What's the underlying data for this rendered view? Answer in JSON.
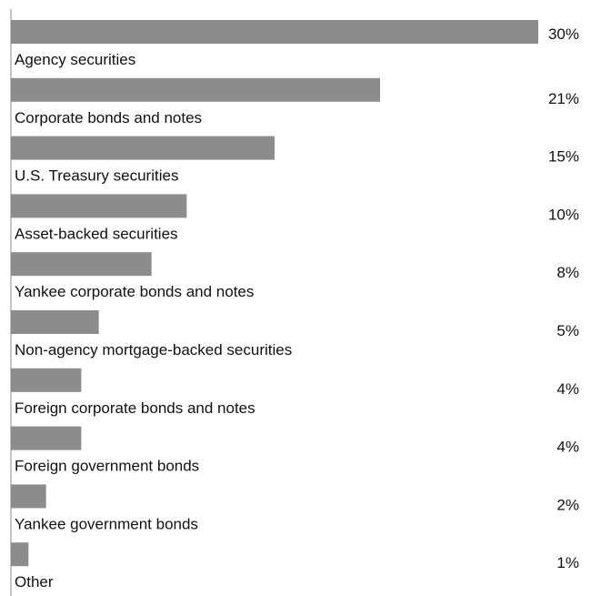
{
  "chart_data": {
    "type": "bar",
    "orientation": "horizontal",
    "categories": [
      "Agency securities",
      "Corporate bonds and notes",
      "U.S. Treasury securities",
      "Asset-backed securities",
      "Yankee corporate bonds and notes",
      "Non-agency mortgage-backed securities",
      "Foreign corporate bonds and notes",
      "Foreign government bonds",
      "Yankee government bonds",
      "Other"
    ],
    "values": [
      30,
      21,
      15,
      10,
      8,
      5,
      4,
      4,
      2,
      1
    ],
    "value_labels": [
      "30%",
      "21%",
      "15%",
      "10%",
      "8%",
      "5%",
      "4%",
      "4%",
      "2%",
      "1%"
    ],
    "xlim": [
      0,
      30
    ],
    "grid": false,
    "legend": "none",
    "colors": {
      "bar": "#8c8c8c",
      "axis": "#888888",
      "text": "#111111"
    }
  }
}
